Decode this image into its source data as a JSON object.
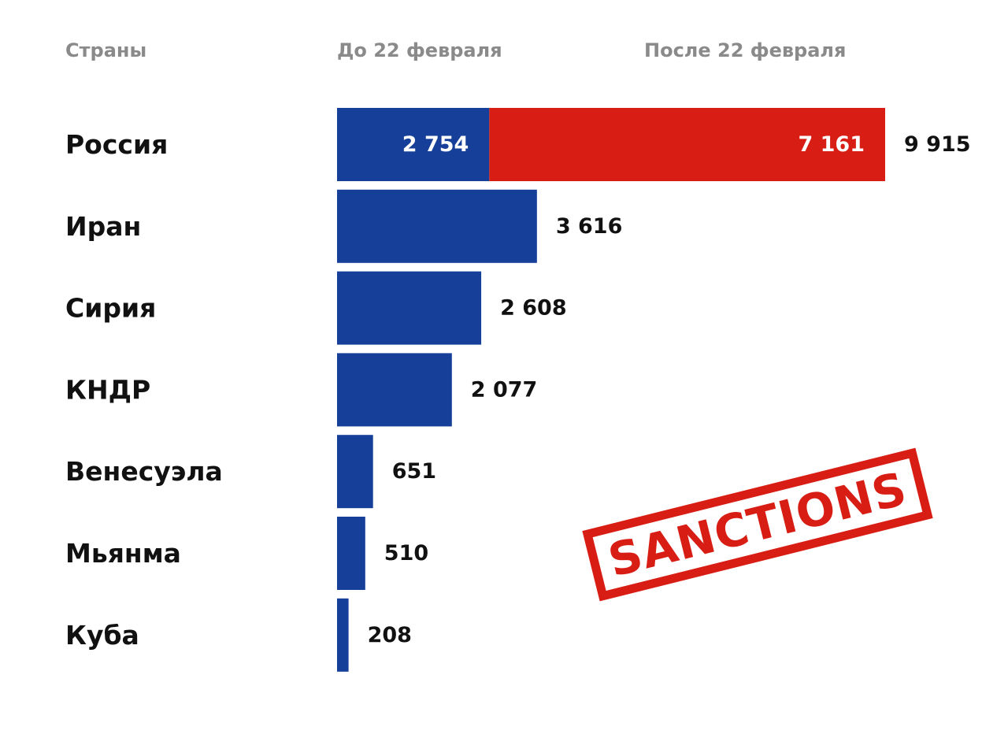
{
  "headers": {
    "countries": "Страны",
    "before": "До 22 февраля",
    "after": "После 22 февраля"
  },
  "stamp": {
    "text": "SANCTIONS"
  },
  "colors": {
    "before": "#153f98",
    "after": "#d81d14",
    "stamp": "#d81d14",
    "header_text": "#8a8a8a"
  },
  "chart_data": {
    "type": "bar",
    "orientation": "horizontal",
    "stacked": true,
    "categories": [
      "Россия",
      "Иран",
      "Сирия",
      "КНДР",
      "Венесуэла",
      "Мьянма",
      "Куба"
    ],
    "series": [
      {
        "name": "До 22 февраля",
        "values": [
          2754,
          3616,
          2608,
          2077,
          651,
          510,
          208
        ],
        "labels": [
          "2 754",
          "",
          "",
          "",
          "",
          "",
          ""
        ]
      },
      {
        "name": "После 22 февраля",
        "values": [
          7161,
          0,
          0,
          0,
          0,
          0,
          0
        ],
        "labels": [
          "7 161",
          "",
          "",
          "",
          "",
          "",
          ""
        ]
      }
    ],
    "totals": [
      9915,
      3616,
      2608,
      2077,
      651,
      510,
      208
    ],
    "total_labels": [
      "9 915",
      "3 616",
      "2 608",
      "2 077",
      "651",
      "510",
      "208"
    ],
    "xlim": [
      0,
      9915
    ],
    "title": "",
    "xlabel": "",
    "ylabel": "",
    "grid": false,
    "legend": "top"
  }
}
